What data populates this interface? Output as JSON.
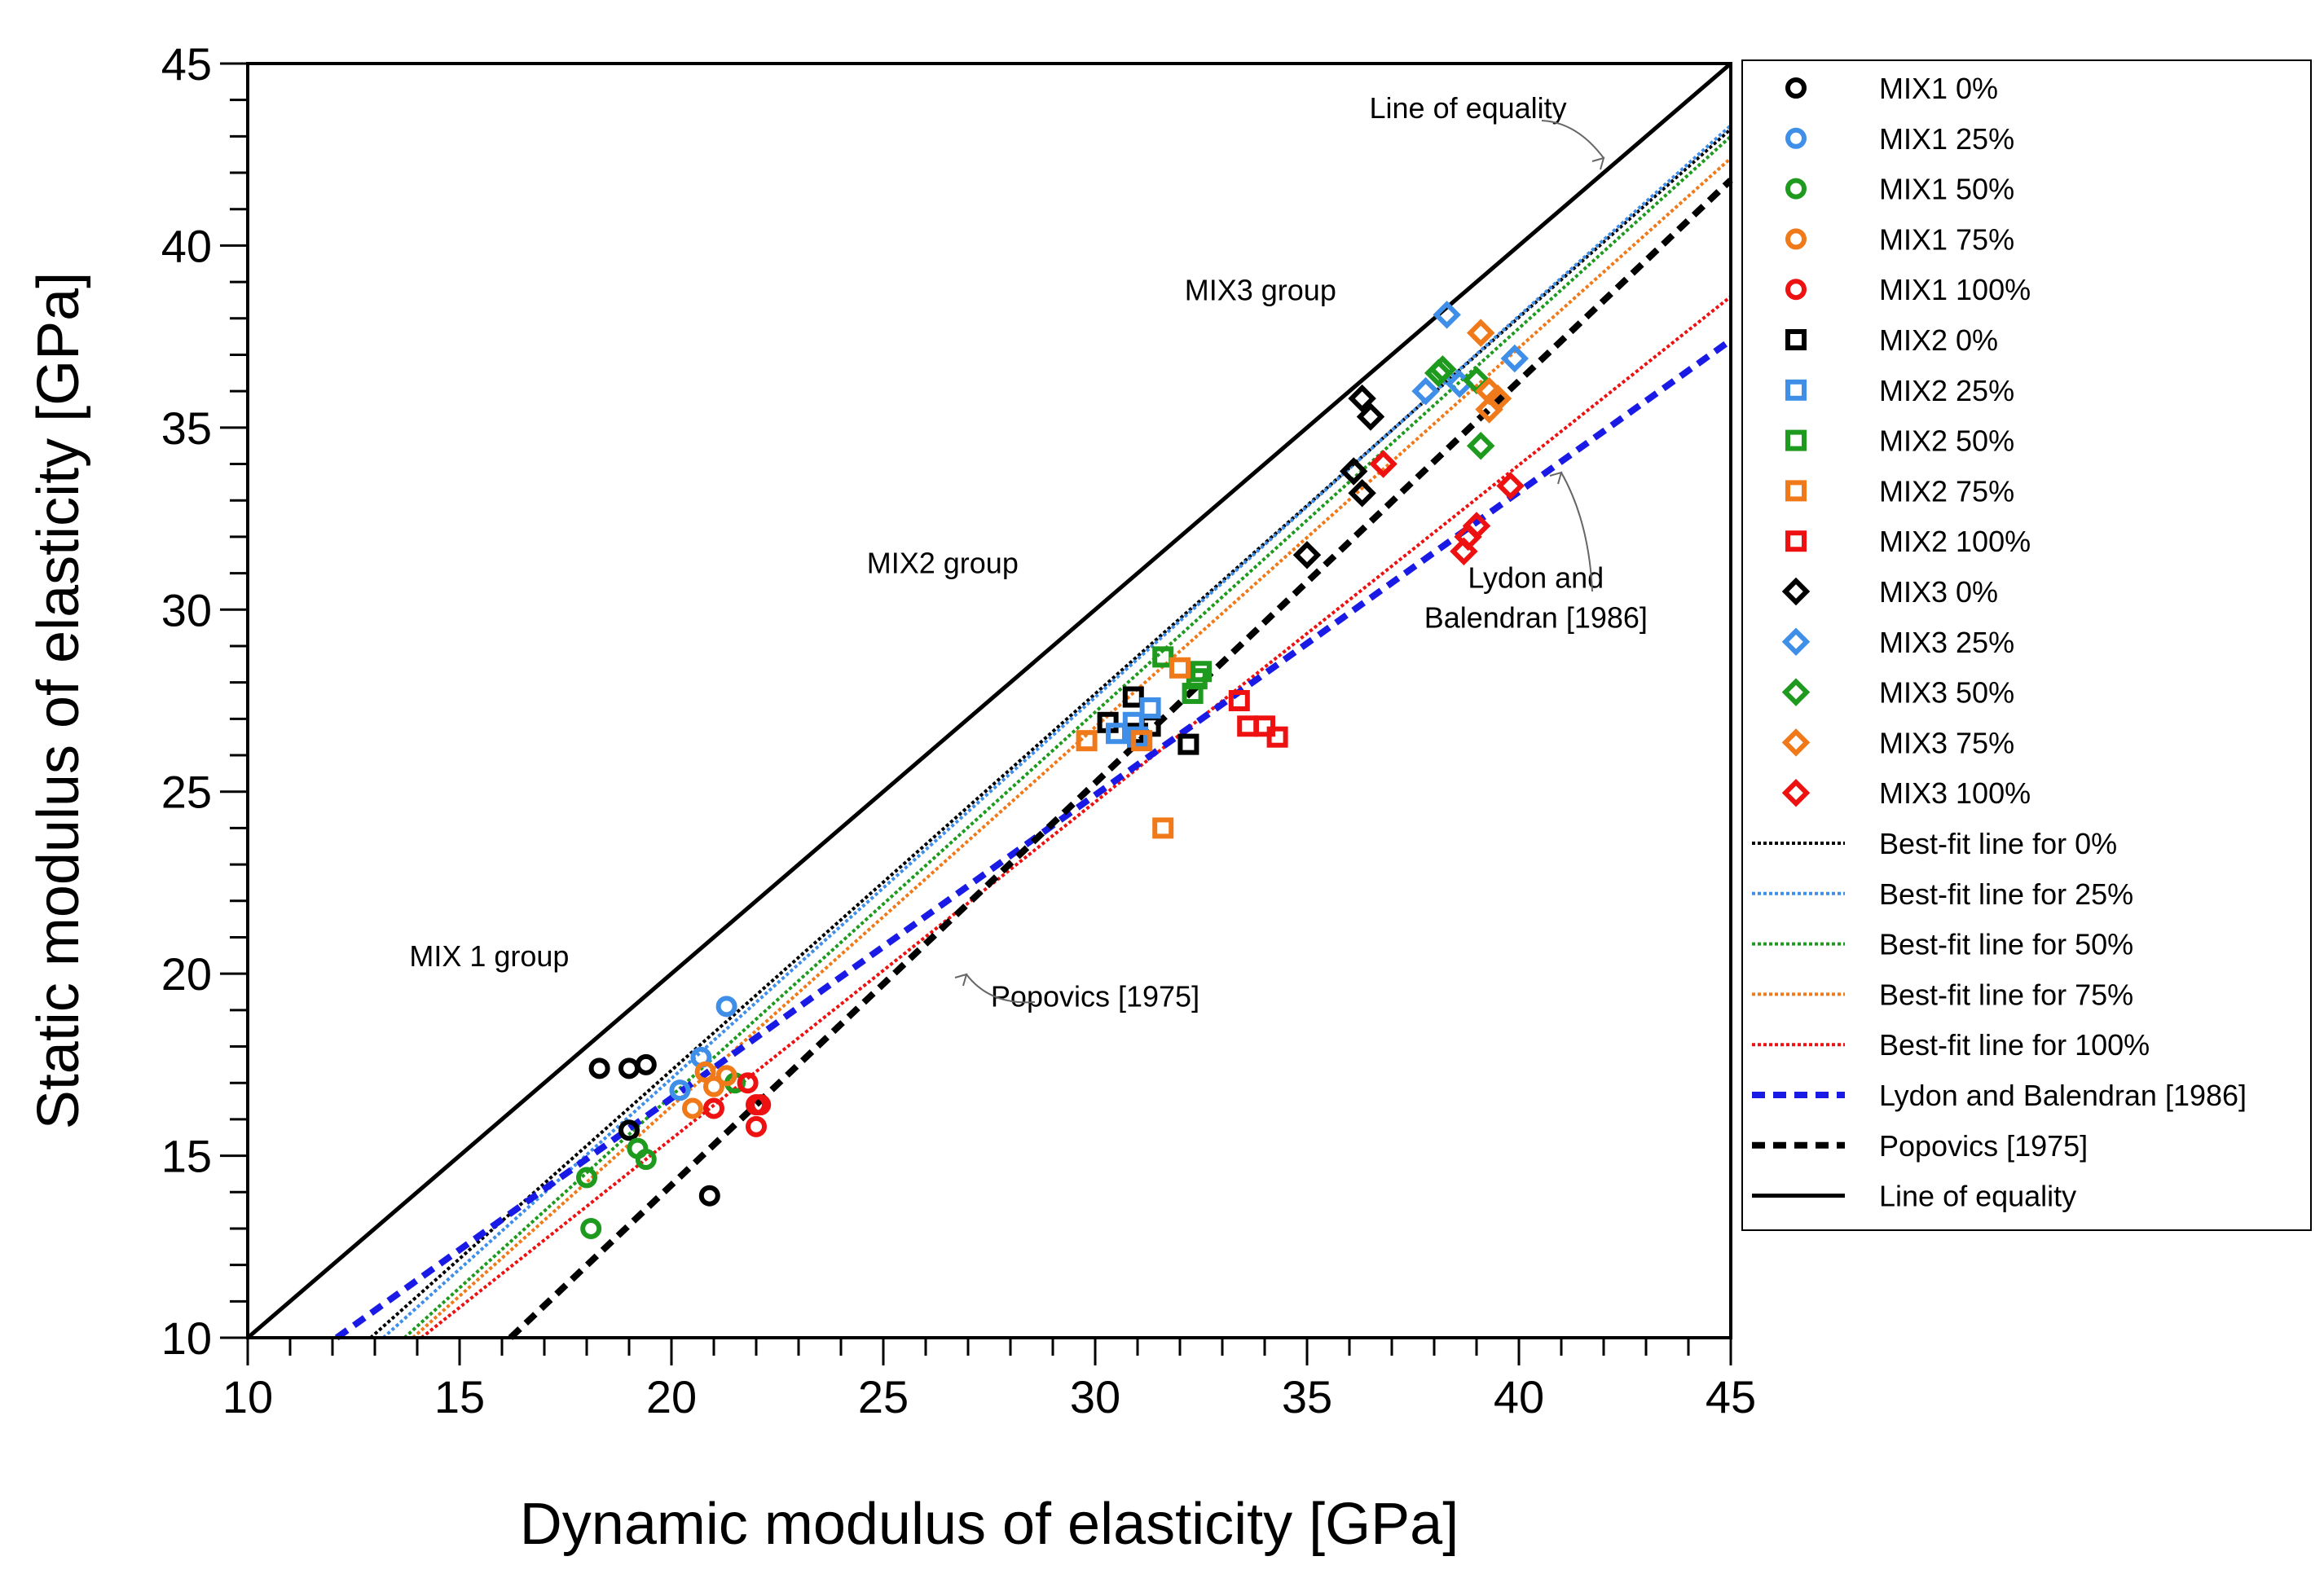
{
  "chart_data": {
    "type": "scatter",
    "title": "",
    "xlabel": "Dynamic modulus of elasticity [GPa]",
    "ylabel": "Static modulus of elasticity [GPa]",
    "xlim": [
      10,
      45
    ],
    "ylim": [
      10,
      45
    ],
    "x_ticks": [
      10,
      15,
      20,
      25,
      30,
      35,
      40,
      45
    ],
    "y_ticks": [
      10,
      15,
      20,
      25,
      30,
      35,
      40,
      45
    ],
    "grid": false,
    "legend_position": "right",
    "series": [
      {
        "name": "MIX1 0%",
        "marker": "circle",
        "color": "#000000",
        "x": [
          18.3,
          19.0,
          19.4,
          19.0,
          20.9
        ],
        "y": [
          17.4,
          17.4,
          17.5,
          15.7,
          13.9
        ]
      },
      {
        "name": "MIX1 25%",
        "marker": "circle",
        "color": "#3f8fe8",
        "x": [
          21.3,
          20.7,
          20.2
        ],
        "y": [
          19.1,
          17.7,
          16.8
        ]
      },
      {
        "name": "MIX1 50%",
        "marker": "circle",
        "color": "#1e9a1e",
        "x": [
          18.0,
          18.1,
          19.2,
          19.4,
          21.5
        ],
        "y": [
          14.4,
          13.0,
          15.2,
          14.9,
          17.0
        ]
      },
      {
        "name": "MIX1 75%",
        "marker": "circle",
        "color": "#f07a1a",
        "x": [
          20.5,
          20.8,
          21.3,
          21.0
        ],
        "y": [
          16.3,
          17.3,
          17.2,
          16.9
        ]
      },
      {
        "name": "MIX1 100%",
        "marker": "circle",
        "color": "#ee1111",
        "x": [
          21.0,
          21.8,
          22.0,
          22.1,
          22.0
        ],
        "y": [
          16.3,
          17.0,
          16.4,
          16.4,
          15.8
        ]
      },
      {
        "name": "MIX2 0%",
        "marker": "square",
        "color": "#000000",
        "x": [
          30.3,
          30.9,
          31.0,
          31.3,
          32.2
        ],
        "y": [
          26.9,
          27.6,
          26.6,
          26.8,
          26.3
        ]
      },
      {
        "name": "MIX2 25%",
        "marker": "square",
        "color": "#3f8fe8",
        "x": [
          30.5,
          30.9,
          31.3,
          31.0
        ],
        "y": [
          26.6,
          26.9,
          27.3,
          26.5
        ]
      },
      {
        "name": "MIX2 50%",
        "marker": "square",
        "color": "#1e9a1e",
        "x": [
          31.6,
          32.4,
          32.3,
          32.5
        ],
        "y": [
          28.7,
          28.1,
          27.7,
          28.3
        ]
      },
      {
        "name": "MIX2 75%",
        "marker": "square",
        "color": "#f07a1a",
        "x": [
          29.8,
          31.1,
          32.0,
          31.6
        ],
        "y": [
          26.4,
          26.4,
          28.4,
          24.0
        ]
      },
      {
        "name": "MIX2 100%",
        "marker": "square",
        "color": "#ee1111",
        "x": [
          33.4,
          33.6,
          34.0,
          34.3
        ],
        "y": [
          27.5,
          26.8,
          26.8,
          26.5
        ]
      },
      {
        "name": "MIX3 0%",
        "marker": "diamond",
        "color": "#000000",
        "x": [
          36.3,
          36.5,
          36.1,
          36.3,
          35.0
        ],
        "y": [
          35.8,
          35.3,
          33.8,
          33.2,
          31.5
        ]
      },
      {
        "name": "MIX3 25%",
        "marker": "diamond",
        "color": "#3f8fe8",
        "x": [
          38.3,
          37.8,
          38.6,
          39.9
        ],
        "y": [
          38.1,
          36.0,
          36.2,
          36.9
        ]
      },
      {
        "name": "MIX3 50%",
        "marker": "diamond",
        "color": "#1e9a1e",
        "x": [
          38.1,
          38.2,
          39.0,
          39.1
        ],
        "y": [
          36.5,
          36.6,
          36.3,
          34.5
        ]
      },
      {
        "name": "MIX3 75%",
        "marker": "diamond",
        "color": "#f07a1a",
        "x": [
          39.1,
          39.3,
          39.5,
          39.3
        ],
        "y": [
          37.6,
          36.0,
          35.8,
          35.5
        ]
      },
      {
        "name": "MIX3 100%",
        "marker": "diamond",
        "color": "#ee1111",
        "x": [
          36.8,
          39.0,
          39.8,
          38.7,
          38.8
        ],
        "y": [
          34.0,
          32.3,
          33.4,
          31.6,
          32.0
        ]
      }
    ],
    "lines": [
      {
        "name": "Best-fit line for 0%",
        "style": "dotted",
        "color": "#000000",
        "x": [
          12.9,
          45.0
        ],
        "y": [
          10.0,
          43.2
        ]
      },
      {
        "name": "Best-fit line for 25%",
        "style": "dotted",
        "color": "#3f8fe8",
        "x": [
          13.2,
          45.0
        ],
        "y": [
          10.0,
          43.3
        ]
      },
      {
        "name": "Best-fit line for 50%",
        "style": "dotted",
        "color": "#1e9a1e",
        "x": [
          13.7,
          45.0
        ],
        "y": [
          10.0,
          43.0
        ]
      },
      {
        "name": "Best-fit line for 75%",
        "style": "dotted",
        "color": "#f07a1a",
        "x": [
          13.9,
          45.0
        ],
        "y": [
          10.0,
          42.4
        ]
      },
      {
        "name": "Best-fit line for 100%",
        "style": "dotted",
        "color": "#ee1111",
        "x": [
          14.1,
          45.0
        ],
        "y": [
          10.0,
          38.6
        ]
      },
      {
        "name": "Lydon and Balendran [1986]",
        "style": "dashed",
        "color": "#1a1ae6",
        "x": [
          12.1,
          45.0
        ],
        "y": [
          10.0,
          37.4
        ]
      },
      {
        "name": "Popovics [1975]",
        "style": "dashed",
        "color": "#000000",
        "x": [
          16.2,
          45.0
        ],
        "y": [
          10.0,
          41.8
        ]
      },
      {
        "name": "Line of equality",
        "style": "solid",
        "color": "#000000",
        "x": [
          10.0,
          45.0
        ],
        "y": [
          10.0,
          45.0
        ]
      }
    ],
    "annotations": [
      {
        "text": "Line of equality",
        "x": 38.8,
        "y": 43.5
      },
      {
        "text": "MIX3 group",
        "x": 33.9,
        "y": 38.5
      },
      {
        "text": "MIX2 group",
        "x": 26.4,
        "y": 31.0
      },
      {
        "text": "Lydon and",
        "x": 40.4,
        "y": 30.6
      },
      {
        "text": "Balendran [1986]",
        "x": 40.4,
        "y": 29.5
      },
      {
        "text": "MIX 1 group",
        "x": 15.7,
        "y": 20.2
      },
      {
        "text": "Popovics [1975]",
        "x": 30.0,
        "y": 19.1
      }
    ]
  }
}
